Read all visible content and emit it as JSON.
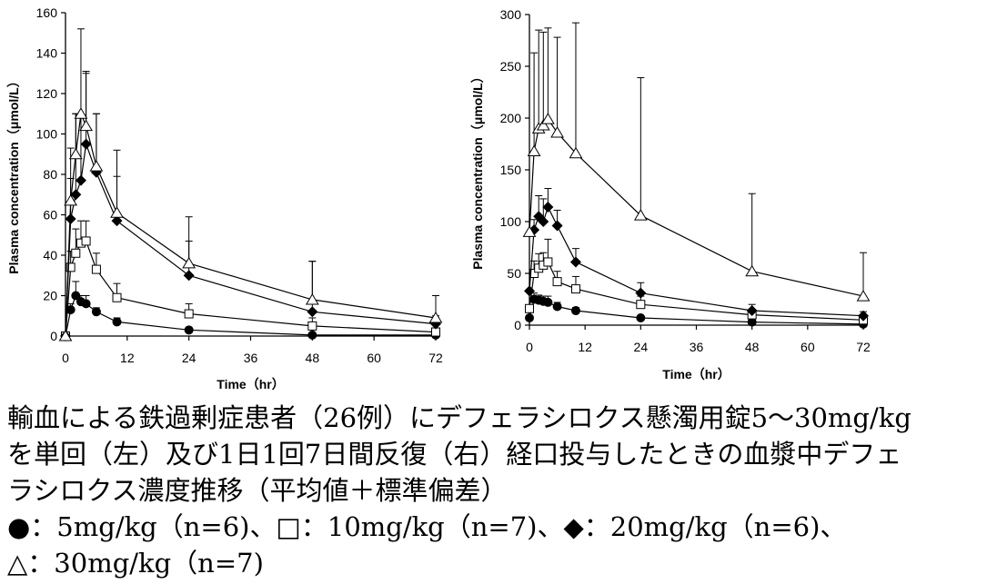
{
  "chart_data": [
    {
      "type": "line",
      "ylabel": "Plasma concentration（μmol/L）",
      "xlabel": "Time（hr）",
      "xlim": [
        0,
        72
      ],
      "ylim": [
        0,
        160
      ],
      "xticks": [
        0,
        12,
        24,
        36,
        48,
        60,
        72
      ],
      "yticks": [
        0,
        20,
        40,
        60,
        80,
        100,
        120,
        140,
        160
      ],
      "grid": false,
      "series": [
        {
          "marker": "circle-filled",
          "points": [
            [
              0,
              0
            ],
            [
              1,
              13
            ],
            [
              2,
              20
            ],
            [
              3,
              17
            ],
            [
              4,
              16
            ],
            [
              6,
              12
            ],
            [
              10,
              7
            ],
            [
              24,
              3
            ],
            [
              48,
              0.5
            ],
            [
              72,
              0.5
            ]
          ],
          "sd": [
            0,
            3,
            7,
            3,
            4,
            2,
            2,
            1,
            0,
            0
          ]
        },
        {
          "marker": "square-open",
          "points": [
            [
              0,
              0
            ],
            [
              1,
              34
            ],
            [
              2,
              41
            ],
            [
              3,
              46
            ],
            [
              4,
              47
            ],
            [
              6,
              33
            ],
            [
              10,
              19
            ],
            [
              24,
              11
            ],
            [
              48,
              5
            ],
            [
              72,
              2
            ]
          ],
          "sd": [
            0,
            8,
            12,
            11,
            10,
            8,
            7,
            5,
            4,
            2
          ]
        },
        {
          "marker": "diamond-filled",
          "points": [
            [
              0,
              0
            ],
            [
              1,
              58
            ],
            [
              2,
              70
            ],
            [
              3,
              77
            ],
            [
              4,
              95
            ],
            [
              6,
              81
            ],
            [
              10,
              57
            ],
            [
              24,
              30
            ],
            [
              48,
              12
            ],
            [
              72,
              6
            ]
          ],
          "sd": [
            0,
            20,
            40,
            32,
            35,
            29,
            22,
            17,
            25,
            4
          ]
        },
        {
          "marker": "triangle-open",
          "points": [
            [
              0,
              0
            ],
            [
              1,
              67
            ],
            [
              2,
              90
            ],
            [
              3,
              110
            ],
            [
              4,
              104
            ],
            [
              6,
              84
            ],
            [
              10,
              61
            ],
            [
              24,
              36
            ],
            [
              48,
              18
            ],
            [
              72,
              9
            ]
          ],
          "sd": [
            0,
            26,
            20,
            42,
            27,
            26,
            31,
            23,
            19,
            11
          ]
        }
      ]
    },
    {
      "type": "line",
      "ylabel": "Plasma concentration（μmol/L）",
      "xlabel": "Time（hr）",
      "xlim": [
        0,
        72
      ],
      "ylim": [
        0,
        300
      ],
      "xticks": [
        0,
        12,
        24,
        36,
        48,
        60,
        72
      ],
      "yticks": [
        0,
        50,
        100,
        150,
        200,
        250,
        300
      ],
      "grid": false,
      "series": [
        {
          "marker": "circle-filled",
          "points": [
            [
              0,
              7
            ],
            [
              1,
              25
            ],
            [
              2,
              24
            ],
            [
              3,
              23
            ],
            [
              4,
              22
            ],
            [
              6,
              18
            ],
            [
              10,
              14
            ],
            [
              24,
              7
            ],
            [
              48,
              3
            ],
            [
              72,
              1
            ]
          ],
          "sd": [
            0,
            6,
            5,
            5,
            6,
            4,
            3,
            2,
            1,
            0
          ]
        },
        {
          "marker": "square-open",
          "points": [
            [
              0,
              16
            ],
            [
              1,
              50
            ],
            [
              2,
              55
            ],
            [
              3,
              58
            ],
            [
              4,
              61
            ],
            [
              6,
              42
            ],
            [
              10,
              35
            ],
            [
              24,
              20
            ],
            [
              48,
              10
            ],
            [
              72,
              5
            ]
          ],
          "sd": [
            0,
            12,
            14,
            12,
            22,
            10,
            12,
            8,
            5,
            3
          ]
        },
        {
          "marker": "diamond-filled",
          "points": [
            [
              0,
              33
            ],
            [
              1,
              92
            ],
            [
              2,
              105
            ],
            [
              3,
              100
            ],
            [
              4,
              114
            ],
            [
              6,
              96
            ],
            [
              10,
              61
            ],
            [
              24,
              31
            ],
            [
              48,
              14
            ],
            [
              72,
              9
            ]
          ],
          "sd": [
            0,
            10,
            20,
            22,
            18,
            15,
            13,
            10,
            6,
            4
          ]
        },
        {
          "marker": "triangle-open",
          "points": [
            [
              0,
              90
            ],
            [
              1,
              168
            ],
            [
              2,
              190
            ],
            [
              3,
              193
            ],
            [
              4,
              199
            ],
            [
              6,
              186
            ],
            [
              10,
              166
            ],
            [
              24,
              106
            ],
            [
              48,
              52
            ],
            [
              72,
              28
            ]
          ],
          "sd": [
            0,
            95,
            95,
            90,
            88,
            92,
            126,
            133,
            75,
            42
          ]
        }
      ]
    }
  ],
  "caption": {
    "line1": "輸血による鉄過剰症患者（26例）にデフェラシロクス懸濁用錠5～30mg/kg",
    "line2": "を単回（左）及び1日1回7日間反復（右）経口投与したときの血漿中デフェ",
    "line3": "ラシロクス濃度推移（平均値＋標準偏差）",
    "line4": "●：5mg/kg（n=6)、□：10mg/kg（n=7)、◆：20mg/kg（n=6)、",
    "line5": "△：30mg/kg（n=7)"
  }
}
